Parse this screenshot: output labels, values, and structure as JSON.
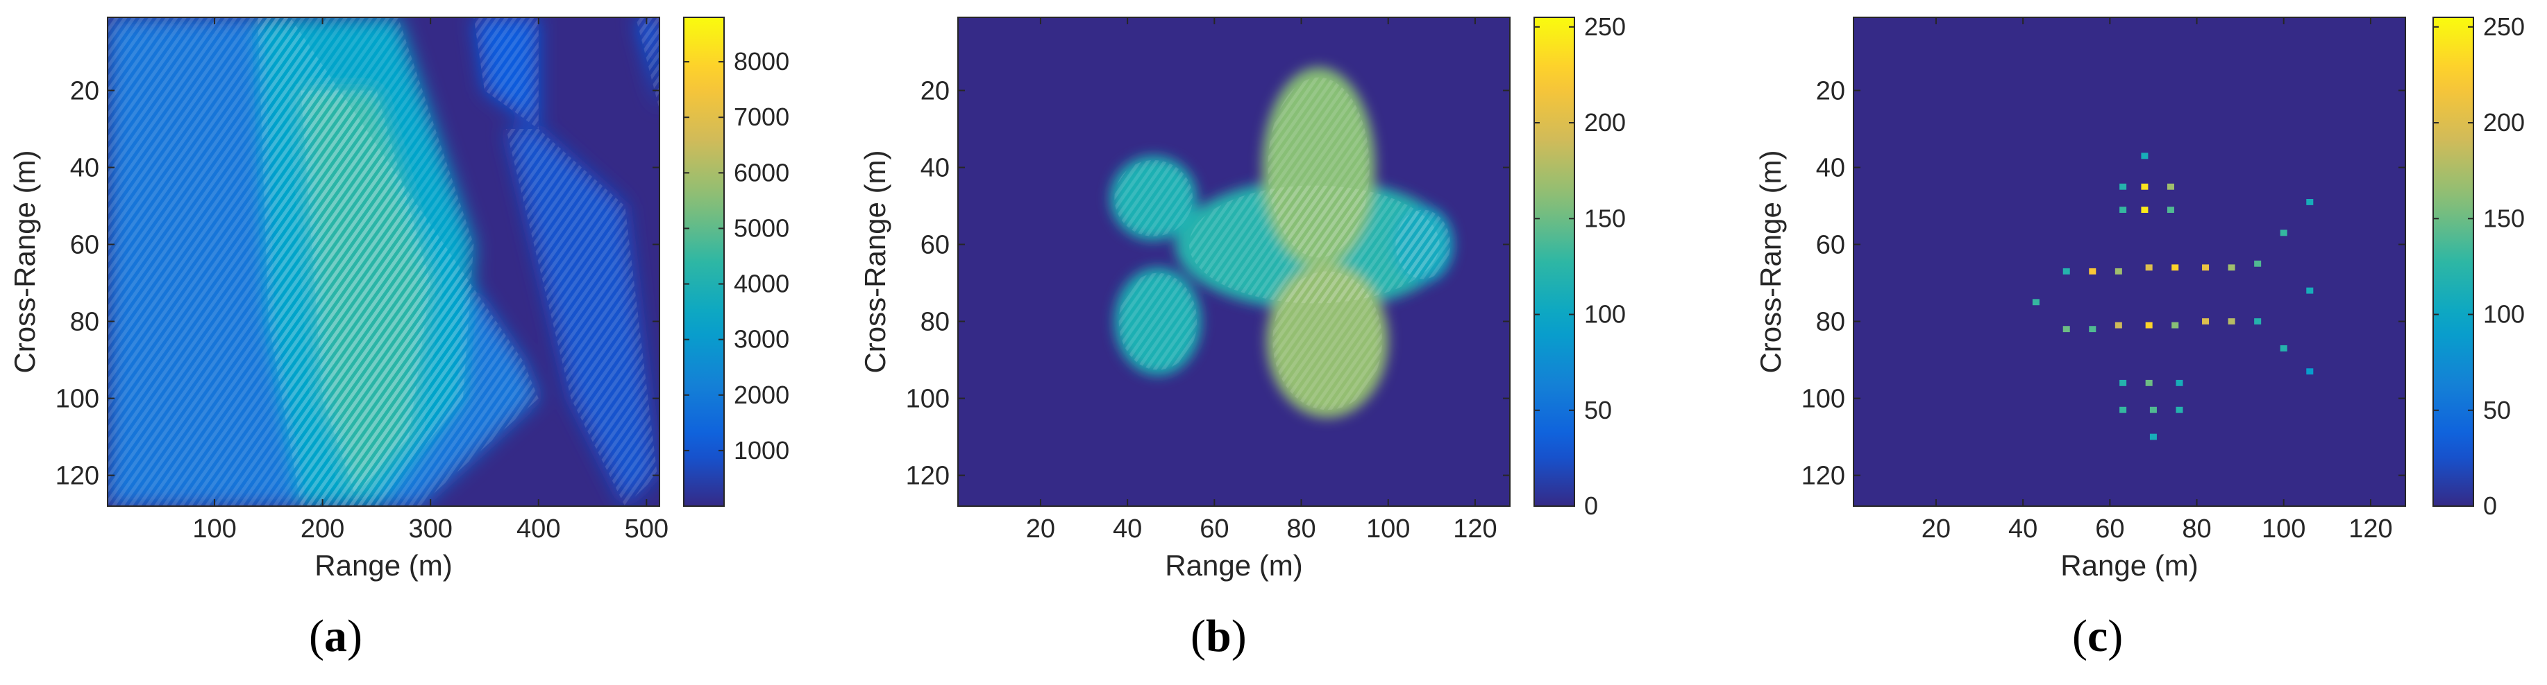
{
  "colormap": "parula",
  "colors": {
    "background": "#ffffff",
    "axis": "#262626",
    "parula_stops": [
      "#352a87",
      "#0f5cdd",
      "#1481d6",
      "#06a4ca",
      "#2eb7a4",
      "#87bf77",
      "#d1bb59",
      "#fec832",
      "#f9fb0e"
    ]
  },
  "chart_data": [
    {
      "type": "heatmap",
      "panel": "a",
      "caption": "(a)",
      "title": "",
      "xlabel": "Range (m)",
      "ylabel": "Cross-Range (m)",
      "xlim": [
        1,
        512
      ],
      "ylim": [
        1,
        128
      ],
      "y_reversed": true,
      "xticks": [
        100,
        200,
        300,
        400,
        500
      ],
      "yticks": [
        20,
        40,
        60,
        80,
        100,
        120
      ],
      "colorbar": {
        "min": 0,
        "max": 8800,
        "ticks": [
          1000,
          2000,
          3000,
          4000,
          5000,
          6000,
          7000,
          8000
        ]
      },
      "content": "unfocused defocused smear, peak values ~6000-8000 in band x 150-300",
      "regions": [
        {
          "shape": "polygon",
          "points": [
            [
              1,
              1
            ],
            [
              170,
              1
            ],
            [
              385,
              90
            ],
            [
              400,
              100
            ],
            [
              290,
              128
            ],
            [
              1,
              128
            ]
          ],
          "value": 1800
        },
        {
          "shape": "polygon",
          "points": [
            [
              140,
              1
            ],
            [
              270,
              1
            ],
            [
              340,
              60
            ],
            [
              330,
              100
            ],
            [
              250,
              128
            ],
            [
              180,
              128
            ],
            [
              150,
              80
            ]
          ],
          "value": 3300
        },
        {
          "shape": "polygon",
          "points": [
            [
              180,
              20
            ],
            [
              250,
              20
            ],
            [
              300,
              70
            ],
            [
              280,
              110
            ],
            [
              230,
              125
            ],
            [
              200,
              100
            ]
          ],
          "value": 4300
        },
        {
          "shape": "polygon",
          "points": [
            [
              340,
              1
            ],
            [
              400,
              1
            ],
            [
              400,
              30
            ],
            [
              350,
              20
            ]
          ],
          "value": 1100
        },
        {
          "shape": "polygon",
          "points": [
            [
              370,
              30
            ],
            [
              400,
              30
            ],
            [
              480,
              50
            ],
            [
              510,
              120
            ],
            [
              480,
              128
            ],
            [
              430,
              100
            ]
          ],
          "value": 900
        },
        {
          "shape": "polygon",
          "points": [
            [
              490,
              1
            ],
            [
              512,
              1
            ],
            [
              512,
              25
            ]
          ],
          "value": 1100
        }
      ]
    },
    {
      "type": "heatmap",
      "panel": "b",
      "caption": "(b)",
      "title": "",
      "xlabel": "Range (m)",
      "ylabel": "Cross-Range (m)",
      "xlim": [
        1,
        128
      ],
      "ylim": [
        1,
        128
      ],
      "y_reversed": true,
      "xticks": [
        20,
        40,
        60,
        80,
        100,
        120
      ],
      "yticks": [
        20,
        40,
        60,
        80,
        100,
        120
      ],
      "colorbar": {
        "min": 0,
        "max": 255,
        "ticks": [
          0,
          50,
          100,
          150,
          200,
          250
        ]
      },
      "content": "focused aircraft image, values 100-255 on fuselage and wings",
      "regions": [
        {
          "shape": "ellipse",
          "center": [
            83,
            60
          ],
          "radii": [
            32,
            17
          ],
          "value": 120
        },
        {
          "shape": "ellipse",
          "center": [
            84,
            40
          ],
          "radii": [
            13,
            26
          ],
          "value": 160
        },
        {
          "shape": "ellipse",
          "center": [
            86,
            85
          ],
          "radii": [
            14,
            20
          ],
          "value": 165
        },
        {
          "shape": "ellipse",
          "center": [
            46,
            48
          ],
          "radii": [
            10,
            11
          ],
          "value": 115
        },
        {
          "shape": "ellipse",
          "center": [
            47,
            80
          ],
          "radii": [
            10,
            14
          ],
          "value": 115
        },
        {
          "shape": "ellipse",
          "center": [
            108,
            60
          ],
          "radii": [
            7,
            10
          ],
          "value": 105
        }
      ]
    },
    {
      "type": "scatter",
      "panel": "c",
      "caption": "(c)",
      "title": "",
      "xlabel": "Range (m)",
      "ylabel": "Cross-Range (m)",
      "xlim": [
        1,
        128
      ],
      "ylim": [
        1,
        128
      ],
      "y_reversed": true,
      "xticks": [
        20,
        40,
        60,
        80,
        100,
        120
      ],
      "yticks": [
        20,
        40,
        60,
        80,
        100,
        120
      ],
      "colorbar": {
        "min": 0,
        "max": 255,
        "ticks": [
          0,
          50,
          100,
          150,
          200,
          250
        ]
      },
      "content": "sparse point scatterers forming aircraft outline",
      "points": [
        {
          "x": 68,
          "y": 37,
          "v": 110
        },
        {
          "x": 63,
          "y": 45,
          "v": 120
        },
        {
          "x": 68,
          "y": 45,
          "v": 240
        },
        {
          "x": 74,
          "y": 45,
          "v": 170
        },
        {
          "x": 63,
          "y": 51,
          "v": 130
        },
        {
          "x": 68,
          "y": 51,
          "v": 245
        },
        {
          "x": 74,
          "y": 51,
          "v": 140
        },
        {
          "x": 106,
          "y": 49,
          "v": 110
        },
        {
          "x": 100,
          "y": 57,
          "v": 130
        },
        {
          "x": 50,
          "y": 67,
          "v": 120
        },
        {
          "x": 56,
          "y": 67,
          "v": 220
        },
        {
          "x": 62,
          "y": 67,
          "v": 170
        },
        {
          "x": 69,
          "y": 66,
          "v": 200
        },
        {
          "x": 75,
          "y": 66,
          "v": 230
        },
        {
          "x": 82,
          "y": 66,
          "v": 210
        },
        {
          "x": 88,
          "y": 66,
          "v": 170
        },
        {
          "x": 94,
          "y": 65,
          "v": 140
        },
        {
          "x": 106,
          "y": 72,
          "v": 110
        },
        {
          "x": 43,
          "y": 75,
          "v": 130
        },
        {
          "x": 50,
          "y": 82,
          "v": 150
        },
        {
          "x": 56,
          "y": 82,
          "v": 140
        },
        {
          "x": 62,
          "y": 81,
          "v": 190
        },
        {
          "x": 69,
          "y": 81,
          "v": 230
        },
        {
          "x": 75,
          "y": 81,
          "v": 160
        },
        {
          "x": 82,
          "y": 80,
          "v": 200
        },
        {
          "x": 88,
          "y": 80,
          "v": 180
        },
        {
          "x": 94,
          "y": 80,
          "v": 120
        },
        {
          "x": 100,
          "y": 87,
          "v": 120
        },
        {
          "x": 106,
          "y": 93,
          "v": 90
        },
        {
          "x": 63,
          "y": 96,
          "v": 120
        },
        {
          "x": 69,
          "y": 96,
          "v": 150
        },
        {
          "x": 76,
          "y": 96,
          "v": 110
        },
        {
          "x": 63,
          "y": 103,
          "v": 130
        },
        {
          "x": 70,
          "y": 103,
          "v": 140
        },
        {
          "x": 76,
          "y": 103,
          "v": 120
        },
        {
          "x": 70,
          "y": 110,
          "v": 110
        }
      ]
    }
  ]
}
